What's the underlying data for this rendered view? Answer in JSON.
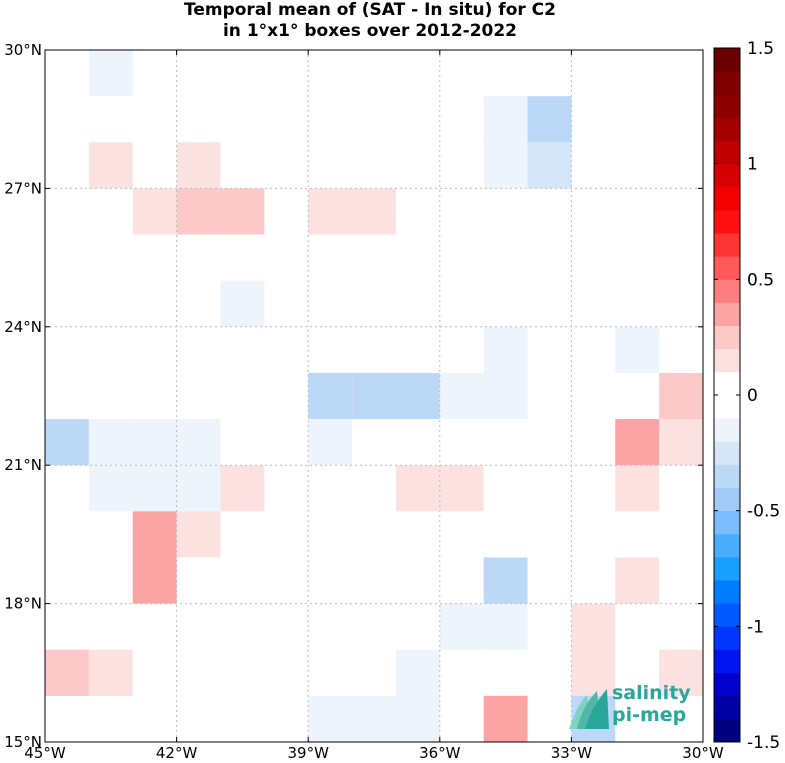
{
  "title": {
    "line1": "Temporal mean of (SAT - In situ) for C2",
    "line2": "in 1°x1° boxes over 2012-2022"
  },
  "chart_data": {
    "type": "heatmap",
    "title": "Temporal mean of (SAT - In situ) for C2 in 1°x1° boxes over 2012-2022",
    "xlabel": "",
    "ylabel": "",
    "xlim": [
      -45,
      -30
    ],
    "ylim": [
      15,
      30
    ],
    "x_ticks": [
      {
        "value": -45,
        "label": "45°W"
      },
      {
        "value": -42,
        "label": "42°W"
      },
      {
        "value": -39,
        "label": "39°W"
      },
      {
        "value": -36,
        "label": "36°W"
      },
      {
        "value": -33,
        "label": "33°W"
      },
      {
        "value": -30,
        "label": "30°W"
      }
    ],
    "y_ticks": [
      {
        "value": 15,
        "label": "15°N"
      },
      {
        "value": 18,
        "label": "18°N"
      },
      {
        "value": 21,
        "label": "21°N"
      },
      {
        "value": 24,
        "label": "24°N"
      },
      {
        "value": 27,
        "label": "27°N"
      },
      {
        "value": 30,
        "label": "30°N"
      }
    ],
    "grid": true,
    "colorbar": {
      "range": [
        -1.5,
        1.5
      ],
      "step": 0.1,
      "ticks": [
        {
          "value": 1.5,
          "label": "1.5"
        },
        {
          "value": 1.0,
          "label": "1"
        },
        {
          "value": 0.5,
          "label": "0.5"
        },
        {
          "value": 0,
          "label": "0"
        },
        {
          "value": -0.5,
          "label": "-0.5"
        },
        {
          "value": -1.0,
          "label": "-1"
        },
        {
          "value": -1.5,
          "label": "-1.5"
        }
      ],
      "colors": [
        "#00007f",
        "#0000a5",
        "#0000cc",
        "#0014f2",
        "#0037ff",
        "#005aff",
        "#007dff",
        "#19a0ff",
        "#4aaeff",
        "#7bbdff",
        "#a2caf7",
        "#bcd8f7",
        "#d5e6f9",
        "#eef4fc",
        "#ffffff",
        "#ffffff",
        "#fce1e1",
        "#fcc8c8",
        "#fca3a3",
        "#fc7e7e",
        "#ff5959",
        "#ff3434",
        "#ff0f0f",
        "#f20000",
        "#d80000",
        "#bf0000",
        "#a50000",
        "#8c0000",
        "#7f0000",
        "#6a0000"
      ]
    },
    "cells": [
      {
        "lon": -43.5,
        "lat": 29.5,
        "value": -0.15
      },
      {
        "lon": -34.5,
        "lat": 28.5,
        "value": -0.15
      },
      {
        "lon": -33.5,
        "lat": 28.5,
        "value": -0.4
      },
      {
        "lon": -43.5,
        "lat": 27.5,
        "value": 0.15
      },
      {
        "lon": -41.5,
        "lat": 27.5,
        "value": 0.15
      },
      {
        "lon": -34.5,
        "lat": 27.5,
        "value": -0.15
      },
      {
        "lon": -33.5,
        "lat": 27.5,
        "value": -0.25
      },
      {
        "lon": -42.5,
        "lat": 26.5,
        "value": 0.15
      },
      {
        "lon": -41.5,
        "lat": 26.5,
        "value": 0.25
      },
      {
        "lon": -40.5,
        "lat": 26.5,
        "value": 0.25
      },
      {
        "lon": -38.5,
        "lat": 26.5,
        "value": 0.15
      },
      {
        "lon": -37.5,
        "lat": 26.5,
        "value": 0.15
      },
      {
        "lon": -40.5,
        "lat": 24.5,
        "value": -0.15
      },
      {
        "lon": -34.5,
        "lat": 23.5,
        "value": -0.15
      },
      {
        "lon": -31.5,
        "lat": 23.5,
        "value": -0.15
      },
      {
        "lon": -38.5,
        "lat": 22.5,
        "value": -0.3
      },
      {
        "lon": -37.5,
        "lat": 22.5,
        "value": -0.4
      },
      {
        "lon": -36.5,
        "lat": 22.5,
        "value": -0.3
      },
      {
        "lon": -35.5,
        "lat": 22.5,
        "value": -0.15
      },
      {
        "lon": -34.5,
        "lat": 22.5,
        "value": -0.15
      },
      {
        "lon": -30.5,
        "lat": 22.5,
        "value": 0.25
      },
      {
        "lon": -44.5,
        "lat": 21.5,
        "value": -0.3
      },
      {
        "lon": -43.5,
        "lat": 21.5,
        "value": -0.2
      },
      {
        "lon": -42.5,
        "lat": 21.5,
        "value": -0.2
      },
      {
        "lon": -41.5,
        "lat": 21.5,
        "value": -0.2
      },
      {
        "lon": -38.5,
        "lat": 21.5,
        "value": -0.15
      },
      {
        "lon": -31.5,
        "lat": 21.5,
        "value": 0.3
      },
      {
        "lon": -30.5,
        "lat": 21.5,
        "value": 0.15
      },
      {
        "lon": -43.5,
        "lat": 20.5,
        "value": -0.15
      },
      {
        "lon": -42.5,
        "lat": 20.5,
        "value": -0.15
      },
      {
        "lon": -41.5,
        "lat": 20.5,
        "value": -0.15
      },
      {
        "lon": -40.5,
        "lat": 20.5,
        "value": 0.15
      },
      {
        "lon": -36.5,
        "lat": 20.5,
        "value": 0.15
      },
      {
        "lon": -35.5,
        "lat": 20.5,
        "value": 0.15
      },
      {
        "lon": -31.5,
        "lat": 20.5,
        "value": 0.15
      },
      {
        "lon": -42.5,
        "lat": 19.5,
        "value": 0.4
      },
      {
        "lon": -41.5,
        "lat": 19.5,
        "value": 0.15
      },
      {
        "lon": -42.5,
        "lat": 18.5,
        "value": 0.4
      },
      {
        "lon": -34.5,
        "lat": 18.5,
        "value": -0.3
      },
      {
        "lon": -31.5,
        "lat": 18.5,
        "value": 0.15
      },
      {
        "lon": -35.5,
        "lat": 17.5,
        "value": -0.15
      },
      {
        "lon": -34.5,
        "lat": 17.5,
        "value": -0.15
      },
      {
        "lon": -32.5,
        "lat": 17.5,
        "value": 0.15
      },
      {
        "lon": -44.5,
        "lat": 16.5,
        "value": 0.25
      },
      {
        "lon": -43.5,
        "lat": 16.5,
        "value": 0.15
      },
      {
        "lon": -36.5,
        "lat": 16.5,
        "value": -0.15
      },
      {
        "lon": -32.5,
        "lat": 16.5,
        "value": 0.15
      },
      {
        "lon": -30.5,
        "lat": 16.5,
        "value": 0.15
      },
      {
        "lon": -38.5,
        "lat": 15.5,
        "value": -0.15
      },
      {
        "lon": -37.5,
        "lat": 15.5,
        "value": -0.15
      },
      {
        "lon": -36.5,
        "lat": 15.5,
        "value": -0.15
      },
      {
        "lon": -34.5,
        "lat": 15.5,
        "value": 0.3
      },
      {
        "lon": -32.5,
        "lat": 15.5,
        "value": -0.3
      }
    ]
  },
  "logo": {
    "line1": "salinity",
    "line2": "pi-mep",
    "color": "#2aa79b"
  }
}
